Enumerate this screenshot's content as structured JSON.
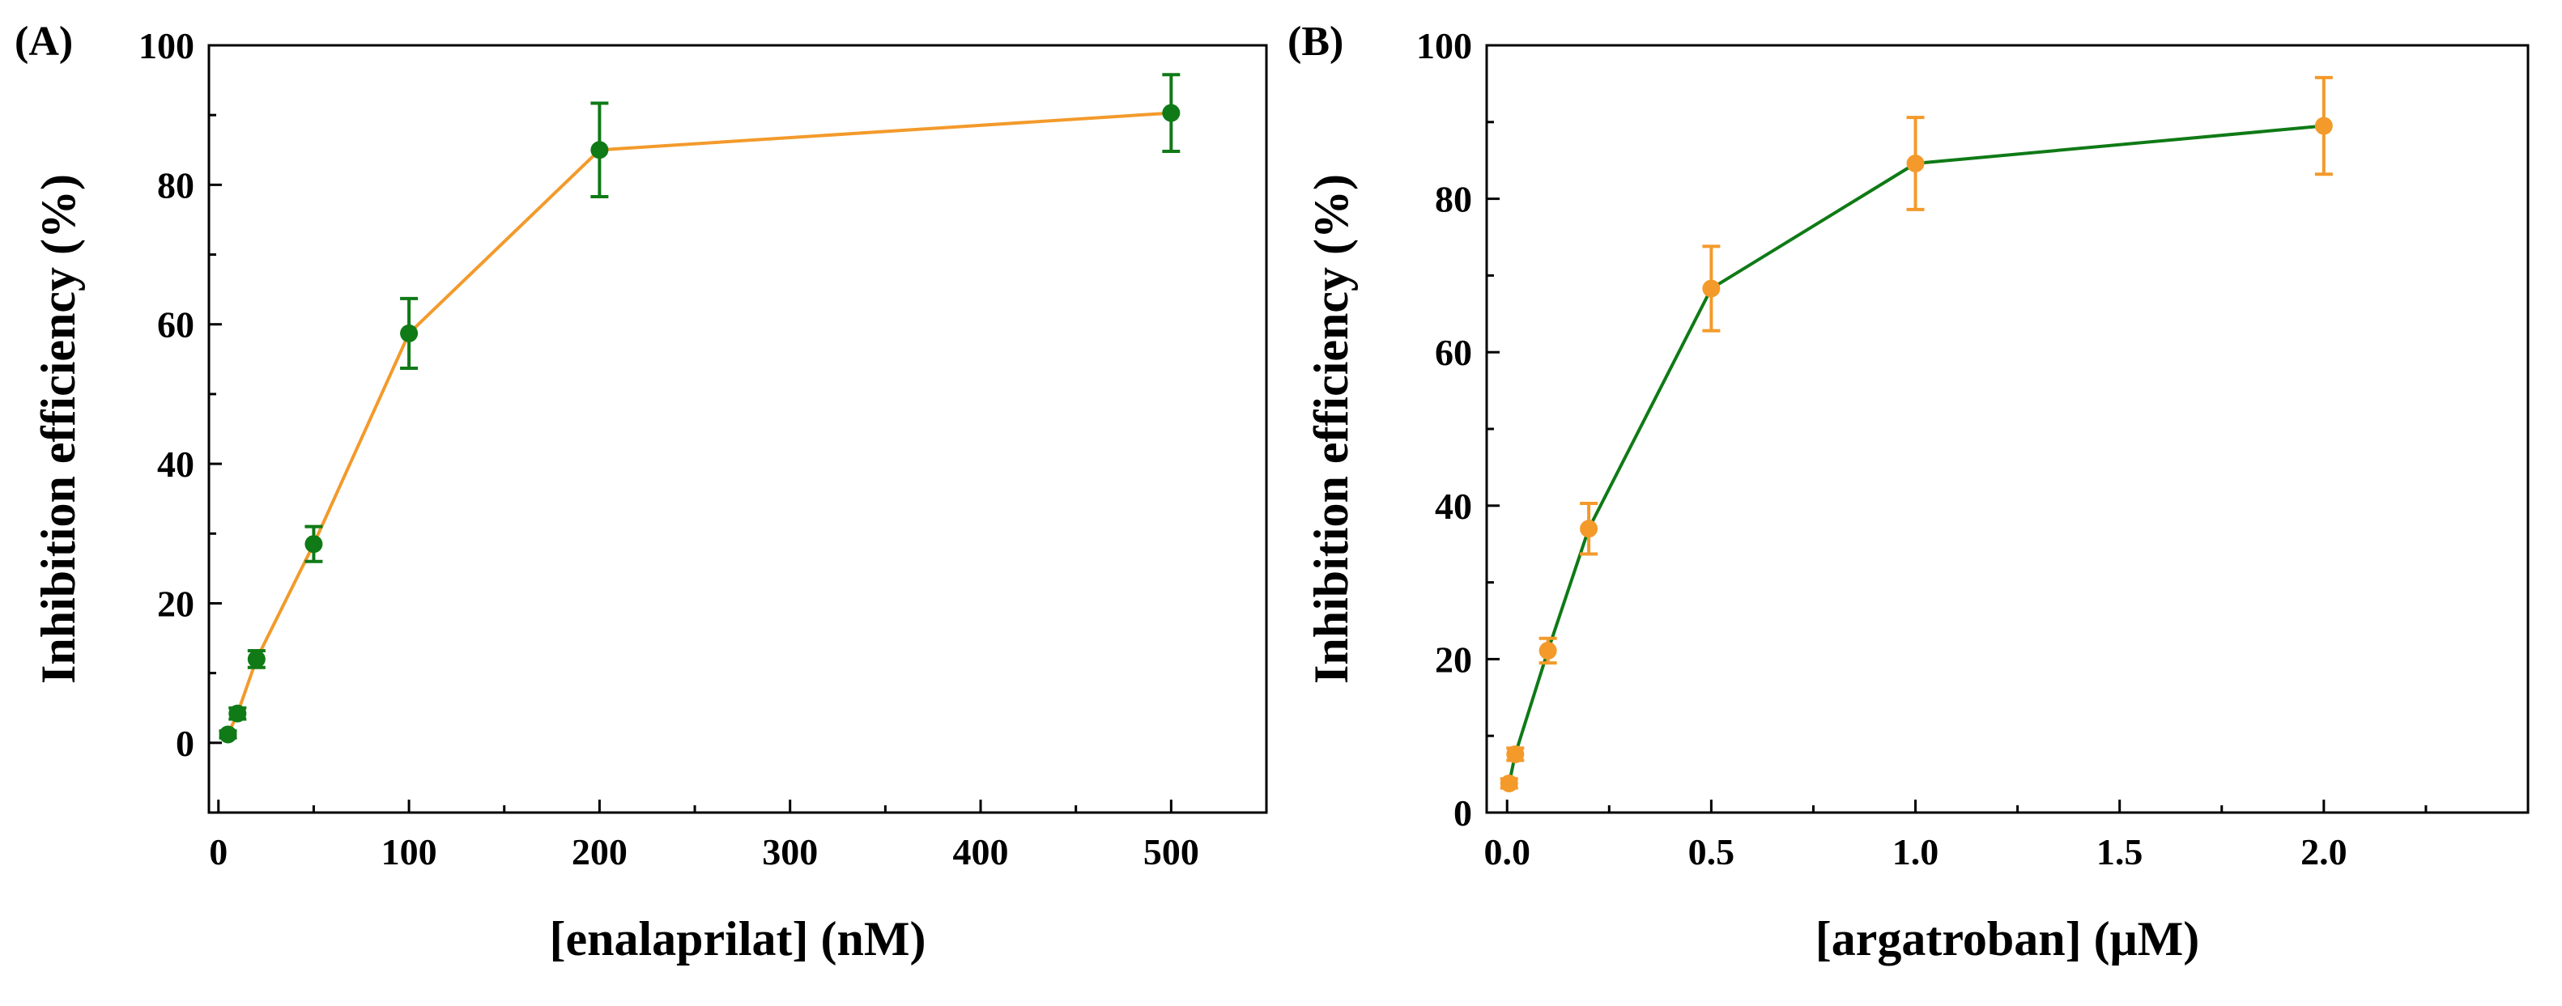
{
  "chart_data": [
    {
      "type": "line",
      "panel_label": "(A)",
      "title": "",
      "xlabel": "[enalaprilat] (nM)",
      "ylabel": "Inhibition efficiency (%)",
      "xlim": [
        -5,
        550
      ],
      "ylim": [
        -10,
        100
      ],
      "xticks": [
        0,
        100,
        200,
        300,
        400,
        500
      ],
      "xtick_labels": [
        "0",
        "100",
        "200",
        "300",
        "400",
        "500"
      ],
      "yticks": [
        0,
        20,
        40,
        60,
        80,
        100
      ],
      "ytick_labels": [
        "0",
        "20",
        "40",
        "60",
        "80",
        "100"
      ],
      "grid": false,
      "line_color": "#f39a2b",
      "marker_color": "#0f7a16",
      "series": [
        {
          "name": "enalaprilat",
          "x": [
            5,
            10,
            20,
            50,
            100,
            200,
            500
          ],
          "y": [
            1.2,
            4.2,
            12.0,
            28.5,
            58.7,
            85.0,
            90.3
          ],
          "err": [
            0.5,
            0.8,
            1.2,
            2.5,
            5.0,
            6.7,
            5.5
          ]
        }
      ]
    },
    {
      "type": "line",
      "panel_label": "(B)",
      "title": "",
      "xlabel": "[argatroban] (μM)",
      "ylabel": "Inhibition efficiency (%)",
      "xlim": [
        -0.05,
        2.5
      ],
      "ylim": [
        0,
        100
      ],
      "xticks": [
        0,
        0.5,
        1.0,
        1.5,
        2.0
      ],
      "xtick_labels": [
        "0.0",
        "0.5",
        "1.0",
        "1.5",
        "2.0"
      ],
      "yticks": [
        0,
        20,
        40,
        60,
        80,
        100
      ],
      "ytick_labels": [
        "0",
        "20",
        "40",
        "60",
        "80",
        "100"
      ],
      "grid": false,
      "line_color": "#0f7a16",
      "marker_color": "#f39a2b",
      "series": [
        {
          "name": "argatroban",
          "x": [
            0.005,
            0.02,
            0.1,
            0.2,
            0.5,
            1.0,
            2.0
          ],
          "y": [
            3.8,
            7.6,
            21.1,
            37.0,
            68.3,
            84.6,
            89.5
          ],
          "err": [
            0.6,
            0.8,
            1.6,
            3.3,
            5.5,
            6.0,
            6.3
          ]
        }
      ]
    }
  ]
}
